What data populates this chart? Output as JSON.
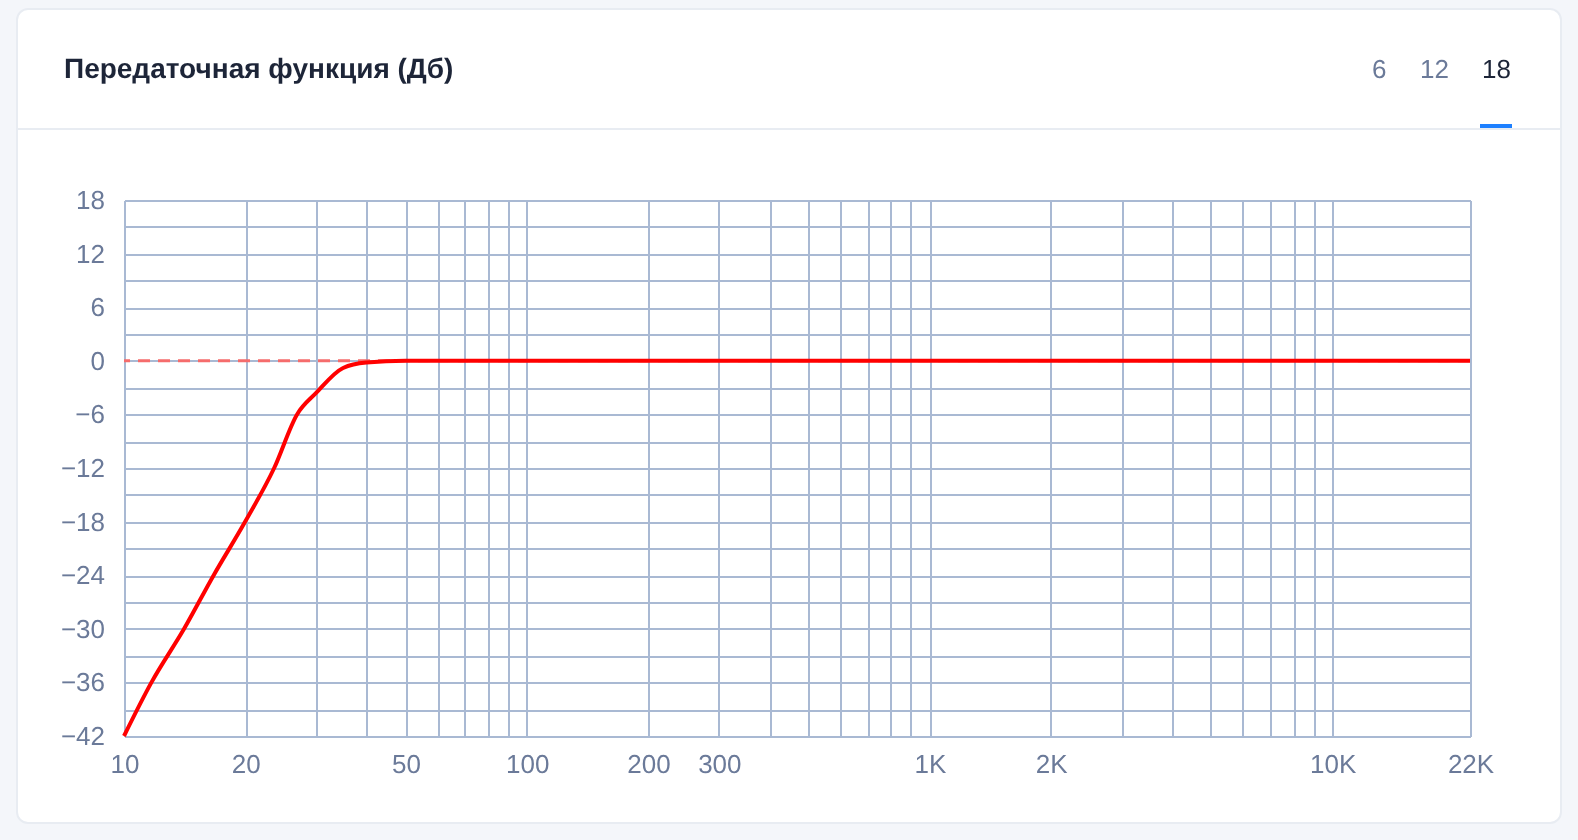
{
  "chart_data": {
    "type": "line",
    "title": "Передаточная функция (Дб)",
    "annotations": [
      "6",
      "12",
      "18"
    ],
    "x": [
      10,
      11.7,
      14.1,
      16.7,
      20,
      23.6,
      26.9,
      30,
      35,
      40,
      50,
      100,
      1000,
      22000
    ],
    "values": [
      -42,
      -36,
      -30,
      -24,
      -18,
      -12,
      -6,
      -3.6,
      -0.8,
      -0.2,
      0,
      0,
      0,
      0
    ],
    "color": "#ff0000",
    "log": "x",
    "grid": true,
    "marker": "none",
    "line_style": "solid",
    "xlim": [
      10,
      22000
    ],
    "xticks": [
      10,
      20,
      {
        "value": 30,
        "label": null
      },
      {
        "value": 40,
        "label": null
      },
      50,
      {
        "value": 60,
        "label": null
      },
      {
        "value": 70,
        "label": null
      },
      {
        "value": 80,
        "label": null
      },
      {
        "value": 90,
        "label": null
      },
      100,
      200,
      300,
      {
        "value": 400,
        "label": null
      },
      {
        "value": 500,
        "label": null
      },
      {
        "value": 600,
        "label": null
      },
      {
        "value": 700,
        "label": null
      },
      {
        "value": 800,
        "label": null
      },
      {
        "value": 900,
        "label": null
      },
      {
        "value": 1000,
        "label": "1K"
      },
      {
        "value": 2000,
        "label": "2K"
      },
      {
        "value": 3000,
        "label": null
      },
      {
        "value": 4000,
        "label": null
      },
      {
        "value": 5000,
        "label": null
      },
      {
        "value": 6000,
        "label": null
      },
      {
        "value": 7000,
        "label": null
      },
      {
        "value": 8000,
        "label": null
      },
      {
        "value": 9000,
        "label": null
      },
      {
        "value": 10000,
        "label": "10K"
      },
      {
        "value": 22000,
        "label": "22K"
      }
    ],
    "ylim": [
      -42,
      18
    ],
    "yticks": [
      -42,
      {
        "value": -39,
        "label": null
      },
      -36,
      {
        "value": -33,
        "label": null
      },
      -30,
      {
        "value": -27,
        "label": null
      },
      -24,
      {
        "value": -21,
        "label": null
      },
      -18,
      {
        "value": -15,
        "label": null
      },
      -12,
      {
        "value": -9,
        "label": null
      },
      -6,
      {
        "value": -3,
        "label": null
      },
      0,
      {
        "value": 3,
        "label": null
      },
      6,
      {
        "value": 9,
        "label": null
      },
      12,
      {
        "value": 15,
        "label": null
      },
      18
    ],
    "ref_lines": [
      {
        "axis": "y",
        "value": 0,
        "color": "#f56c6c",
        "line_style": "dashed"
      }
    ]
  }
}
